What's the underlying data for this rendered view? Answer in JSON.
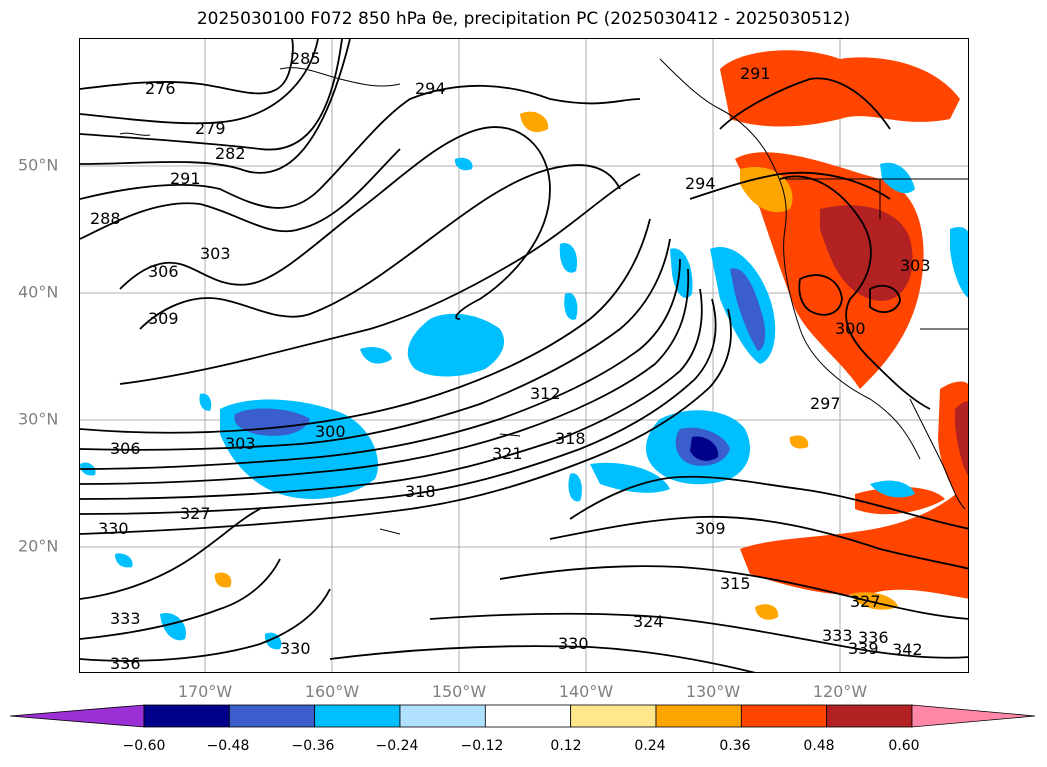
{
  "title": "2025030100 F072 850 hPa θe, precipitation PC (2025030412 - 2025030512)",
  "map": {
    "x_axis_labels": [
      "170°W",
      "160°W",
      "150°W",
      "140°W",
      "130°W",
      "120°W"
    ],
    "y_axis_labels": [
      "50°N",
      "40°N",
      "30°N",
      "20°N"
    ]
  },
  "contour_labels": [
    "276",
    "279",
    "282",
    "285",
    "288",
    "291",
    "294",
    "297",
    "300",
    "303",
    "306",
    "309",
    "312",
    "315",
    "318",
    "321",
    "324",
    "327",
    "330",
    "333",
    "336",
    "339",
    "342"
  ],
  "colorbar": {
    "ticks": [
      "−0.60",
      "−0.48",
      "−0.36",
      "−0.24",
      "−0.12",
      "0.12",
      "0.24",
      "0.36",
      "0.48",
      "0.60"
    ],
    "colors": [
      "#9b30d6",
      "#00008b",
      "#3a5fcd",
      "#00bfff",
      "#b0e2ff",
      "#ffffff",
      "#ffe88c",
      "#ffa500",
      "#ff4500",
      "#b22222",
      "#ff88a8"
    ]
  }
}
